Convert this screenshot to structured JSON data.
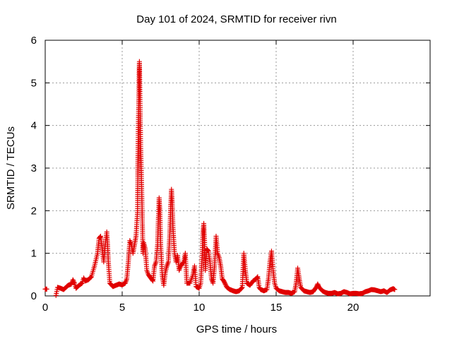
{
  "chart_data": {
    "type": "scatter",
    "title": "Day 101 of 2024, SRMTID for receiver rivn",
    "xlabel": "GPS time / hours",
    "ylabel": "SRMTID / TECUs",
    "xlim": [
      0,
      25
    ],
    "ylim": [
      0,
      6
    ],
    "x_ticks": [
      "0",
      "5",
      "10",
      "15",
      "20"
    ],
    "x_tick_values": [
      0,
      5,
      10,
      15,
      20
    ],
    "y_ticks": [
      "0",
      "1",
      "2",
      "3",
      "4",
      "5",
      "6"
    ],
    "y_tick_values": [
      0,
      1,
      2,
      3,
      4,
      5,
      6
    ],
    "grid": true,
    "marker": "+",
    "series": [
      {
        "name": "SRMTID",
        "color": "#e00000",
        "points": [
          [
            0.0,
            0.16
          ],
          [
            0.1,
            0.16
          ],
          [
            0.7,
            0.01
          ],
          [
            0.8,
            0.2
          ],
          [
            1.0,
            0.18
          ],
          [
            1.2,
            0.15
          ],
          [
            1.4,
            0.22
          ],
          [
            1.5,
            0.25
          ],
          [
            1.7,
            0.28
          ],
          [
            1.8,
            0.38
          ],
          [
            1.9,
            0.3
          ],
          [
            2.0,
            0.18
          ],
          [
            2.2,
            0.25
          ],
          [
            2.4,
            0.3
          ],
          [
            2.5,
            0.42
          ],
          [
            2.6,
            0.35
          ],
          [
            2.8,
            0.38
          ],
          [
            3.0,
            0.45
          ],
          [
            3.2,
            0.7
          ],
          [
            3.4,
            1.0
          ],
          [
            3.5,
            1.35
          ],
          [
            3.6,
            1.4
          ],
          [
            3.7,
            1.1
          ],
          [
            3.8,
            0.8
          ],
          [
            3.9,
            1.2
          ],
          [
            4.0,
            1.5
          ],
          [
            4.05,
            1.2
          ],
          [
            4.1,
            0.8
          ],
          [
            4.2,
            0.3
          ],
          [
            4.4,
            0.22
          ],
          [
            4.6,
            0.25
          ],
          [
            4.8,
            0.28
          ],
          [
            5.0,
            0.26
          ],
          [
            5.2,
            0.3
          ],
          [
            5.3,
            0.4
          ],
          [
            5.4,
            0.8
          ],
          [
            5.5,
            1.3
          ],
          [
            5.6,
            1.2
          ],
          [
            5.7,
            1.0
          ],
          [
            5.8,
            1.2
          ],
          [
            5.9,
            1.4
          ],
          [
            6.0,
            2.0
          ],
          [
            6.02,
            3.1
          ],
          [
            6.05,
            4.0
          ],
          [
            6.08,
            4.6
          ],
          [
            6.1,
            5.2
          ],
          [
            6.12,
            5.5
          ],
          [
            6.15,
            4.8
          ],
          [
            6.2,
            3.5
          ],
          [
            6.25,
            2.8
          ],
          [
            6.3,
            1.9
          ],
          [
            6.35,
            1.0
          ],
          [
            6.4,
            1.25
          ],
          [
            6.5,
            1.1
          ],
          [
            6.6,
            0.6
          ],
          [
            6.7,
            0.5
          ],
          [
            6.9,
            0.4
          ],
          [
            7.0,
            0.35
          ],
          [
            7.1,
            0.7
          ],
          [
            7.2,
            0.8
          ],
          [
            7.3,
            1.2
          ],
          [
            7.35,
            1.8
          ],
          [
            7.4,
            2.3
          ],
          [
            7.45,
            2.0
          ],
          [
            7.5,
            1.2
          ],
          [
            7.6,
            0.5
          ],
          [
            7.7,
            0.25
          ],
          [
            7.8,
            0.55
          ],
          [
            7.9,
            0.7
          ],
          [
            8.0,
            0.8
          ],
          [
            8.1,
            1.5
          ],
          [
            8.15,
            2.1
          ],
          [
            8.2,
            2.5
          ],
          [
            8.25,
            2.2
          ],
          [
            8.3,
            1.6
          ],
          [
            8.4,
            1.0
          ],
          [
            8.5,
            0.8
          ],
          [
            8.6,
            0.95
          ],
          [
            8.7,
            0.6
          ],
          [
            8.8,
            0.7
          ],
          [
            9.0,
            0.8
          ],
          [
            9.1,
            1.0
          ],
          [
            9.2,
            0.3
          ],
          [
            9.4,
            0.3
          ],
          [
            9.6,
            0.5
          ],
          [
            9.7,
            0.7
          ],
          [
            9.8,
            0.22
          ],
          [
            10.0,
            0.18
          ],
          [
            10.1,
            0.3
          ],
          [
            10.2,
            1.0
          ],
          [
            10.25,
            1.5
          ],
          [
            10.3,
            1.7
          ],
          [
            10.35,
            1.3
          ],
          [
            10.4,
            0.6
          ],
          [
            10.5,
            1.1
          ],
          [
            10.6,
            1.05
          ],
          [
            10.7,
            0.8
          ],
          [
            10.8,
            0.4
          ],
          [
            10.9,
            0.3
          ],
          [
            11.0,
            0.7
          ],
          [
            11.1,
            1.4
          ],
          [
            11.2,
            1.0
          ],
          [
            11.3,
            0.9
          ],
          [
            11.4,
            0.7
          ],
          [
            11.5,
            0.4
          ],
          [
            11.6,
            0.35
          ],
          [
            11.8,
            0.2
          ],
          [
            12.0,
            0.15
          ],
          [
            12.2,
            0.12
          ],
          [
            12.4,
            0.1
          ],
          [
            12.6,
            0.12
          ],
          [
            12.8,
            0.2
          ],
          [
            12.9,
            1.0
          ],
          [
            13.0,
            0.6
          ],
          [
            13.1,
            0.3
          ],
          [
            13.3,
            0.25
          ],
          [
            13.5,
            0.35
          ],
          [
            13.7,
            0.4
          ],
          [
            13.8,
            0.45
          ],
          [
            13.9,
            0.2
          ],
          [
            14.0,
            0.15
          ],
          [
            14.2,
            0.12
          ],
          [
            14.4,
            0.15
          ],
          [
            14.5,
            0.4
          ],
          [
            14.6,
            0.8
          ],
          [
            14.7,
            1.05
          ],
          [
            14.8,
            0.6
          ],
          [
            14.9,
            0.3
          ],
          [
            15.0,
            0.18
          ],
          [
            15.2,
            0.12
          ],
          [
            15.4,
            0.1
          ],
          [
            15.6,
            0.08
          ],
          [
            15.8,
            0.08
          ],
          [
            16.0,
            0.06
          ],
          [
            16.2,
            0.1
          ],
          [
            16.3,
            0.3
          ],
          [
            16.4,
            0.65
          ],
          [
            16.5,
            0.4
          ],
          [
            16.6,
            0.2
          ],
          [
            16.8,
            0.12
          ],
          [
            17.0,
            0.1
          ],
          [
            17.2,
            0.08
          ],
          [
            17.4,
            0.1
          ],
          [
            17.6,
            0.2
          ],
          [
            17.7,
            0.28
          ],
          [
            17.8,
            0.2
          ],
          [
            18.0,
            0.12
          ],
          [
            18.2,
            0.08
          ],
          [
            18.4,
            0.06
          ],
          [
            18.6,
            0.06
          ],
          [
            18.8,
            0.08
          ],
          [
            19.0,
            0.05
          ],
          [
            19.2,
            0.06
          ],
          [
            19.4,
            0.1
          ],
          [
            19.6,
            0.08
          ],
          [
            19.8,
            0.05
          ],
          [
            20.0,
            0.06
          ],
          [
            20.2,
            0.06
          ],
          [
            20.4,
            0.05
          ],
          [
            20.6,
            0.06
          ],
          [
            20.8,
            0.1
          ],
          [
            21.0,
            0.12
          ],
          [
            21.2,
            0.15
          ],
          [
            21.4,
            0.14
          ],
          [
            21.6,
            0.12
          ],
          [
            21.8,
            0.1
          ],
          [
            22.0,
            0.12
          ],
          [
            22.2,
            0.08
          ],
          [
            22.4,
            0.14
          ],
          [
            22.6,
            0.17
          ],
          [
            22.7,
            0.15
          ]
        ]
      }
    ]
  }
}
